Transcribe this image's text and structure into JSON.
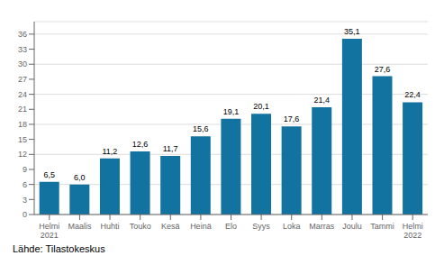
{
  "chart_data": {
    "type": "bar",
    "categories": [
      "Helmi\n2021",
      "Maalis",
      "Huhti",
      "Touko",
      "Kesä",
      "Heinä",
      "Elo",
      "Syys",
      "Loka",
      "Marras",
      "Joulu",
      "Tammi",
      "Helmi\n2022"
    ],
    "values": [
      6.5,
      6.0,
      11.2,
      12.6,
      11.7,
      15.6,
      19.1,
      20.1,
      17.6,
      21.4,
      35.1,
      27.6,
      22.4
    ],
    "value_labels": [
      "6,5",
      "6,0",
      "11,2",
      "12,6",
      "11,7",
      "15,6",
      "19,1",
      "20,1",
      "17,6",
      "21,4",
      "35,1",
      "27,6",
      "22,4"
    ],
    "color": "#1272a0",
    "ylim": [
      0,
      38.5
    ],
    "yticks": [
      0,
      3,
      6,
      9,
      12,
      15,
      18,
      21,
      24,
      27,
      30,
      33,
      36
    ],
    "grid": true,
    "data_labels": true,
    "annotations": [
      "Lähde: Tilastokeskus"
    ]
  }
}
